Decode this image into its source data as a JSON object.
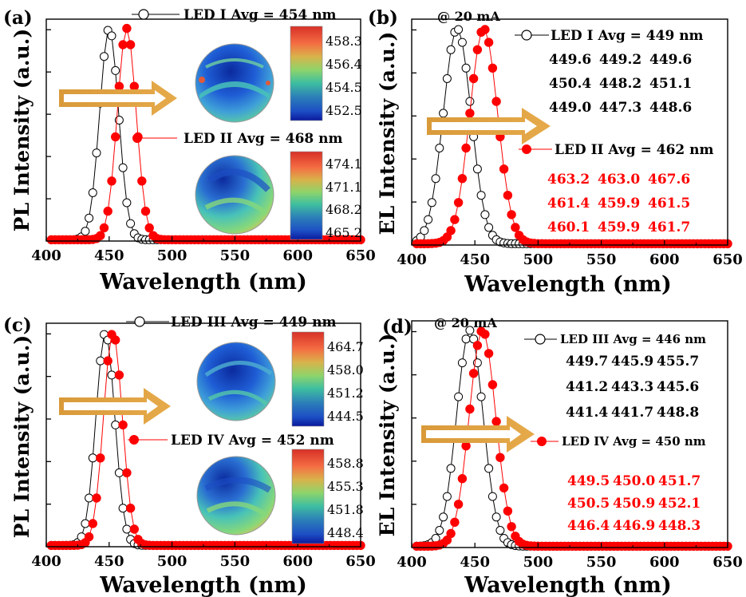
{
  "chart_data": [
    {
      "type": "line",
      "panel_label": "(a)",
      "xlabel": "Wavelength (nm)",
      "ylabel": "PL Intensity (a.u.)",
      "xlim": [
        400,
        650
      ],
      "ylim": [
        0,
        1.05
      ],
      "x_ticks": [
        "400",
        "450",
        "500",
        "550",
        "600",
        "650"
      ],
      "series": [
        {
          "name": "LED I Avg = 454 nm",
          "color": "#000000",
          "marker": "open-circle",
          "peak": 450,
          "width": 7.5
        },
        {
          "name": "LED II Avg = 468 nm",
          "color": "#ff0000",
          "marker": "filled-circle",
          "peak": 464,
          "width": 7.5
        }
      ],
      "maps": [
        {
          "scale": [
            "458.3",
            "456.4",
            "454.5",
            "452.5"
          ],
          "pattern": "low-dominant"
        },
        {
          "scale": [
            "474.1",
            "471.1",
            "468.2",
            "465.2"
          ],
          "pattern": "mixed"
        }
      ]
    },
    {
      "type": "line",
      "panel_label": "(b)",
      "annotation": "@ 20 mA",
      "xlabel": "Wavelength (nm)",
      "ylabel": "EL Intensity (a.u.)",
      "xlim": [
        400,
        650
      ],
      "ylim": [
        0,
        1.05
      ],
      "x_ticks": [
        "400",
        "450",
        "500",
        "550",
        "600",
        "650"
      ],
      "series": [
        {
          "name": "LED I Avg = 449 nm",
          "color": "#000000",
          "marker": "open-circle",
          "peak": 436,
          "width": 11
        },
        {
          "name": "LED II Avg = 462 nm",
          "color": "#ff0000",
          "marker": "filled-circle",
          "peak": 457,
          "width": 11
        }
      ],
      "tables": [
        {
          "color": "#000000",
          "rows": [
            [
              "449.6",
              "449.2",
              "449.6"
            ],
            [
              "450.4",
              "448.2",
              "451.1"
            ],
            [
              "449.0",
              "447.3",
              "448.6"
            ]
          ]
        },
        {
          "color": "#ff0000",
          "rows": [
            [
              "463.2",
              "463.0",
              "467.6"
            ],
            [
              "461.4",
              "459.9",
              "461.5"
            ],
            [
              "460.1",
              "459.9",
              "461.7"
            ]
          ]
        }
      ]
    },
    {
      "type": "line",
      "panel_label": "(c)",
      "xlabel": "Wavelength (nm)",
      "ylabel": "PL Intensity (a.u.)",
      "xlim": [
        400,
        650
      ],
      "ylim": [
        0,
        1.05
      ],
      "x_ticks": [
        "400",
        "450",
        "500",
        "550",
        "600",
        "650"
      ],
      "series": [
        {
          "name": "LED III Avg = 449 nm",
          "color": "#000000",
          "marker": "open-circle",
          "peak": 447,
          "width": 7.5
        },
        {
          "name": "LED IV Avg = 452 nm",
          "color": "#ff0000",
          "marker": "filled-circle",
          "peak": 453,
          "width": 7.5
        }
      ],
      "maps": [
        {
          "scale": [
            "464.7",
            "458.0",
            "451.2",
            "444.5"
          ],
          "pattern": "low-dominant"
        },
        {
          "scale": [
            "458.8",
            "455.3",
            "451.8",
            "448.4"
          ],
          "pattern": "mixed"
        }
      ]
    },
    {
      "type": "line",
      "panel_label": "(d)",
      "annotation": "@ 20 mA",
      "xlabel": "Wavelength (nm)",
      "ylabel": "EL Intensity (a.u.)",
      "xlim": [
        400,
        650
      ],
      "ylim": [
        0,
        1.05
      ],
      "x_ticks": [
        "400",
        "450",
        "500",
        "550",
        "600",
        "650"
      ],
      "series": [
        {
          "name": "LED III Avg = 446 nm",
          "color": "#000000",
          "marker": "open-circle",
          "peak": 446,
          "width": 10.5
        },
        {
          "name": "LED IV Avg = 450 nm",
          "color": "#ff0000",
          "marker": "filled-circle",
          "peak": 456,
          "width": 10.5
        }
      ],
      "tables": [
        {
          "color": "#000000",
          "rows": [
            [
              "449.7",
              "445.9",
              "455.7"
            ],
            [
              "441.2",
              "443.3",
              "445.6"
            ],
            [
              "441.4",
              "441.7",
              "448.8"
            ]
          ]
        },
        {
          "color": "#ff0000",
          "rows": [
            [
              "449.5",
              "450.0",
              "451.7"
            ],
            [
              "450.5",
              "450.9",
              "452.1"
            ],
            [
              "446.4",
              "446.9",
              "448.3"
            ]
          ]
        }
      ]
    }
  ]
}
